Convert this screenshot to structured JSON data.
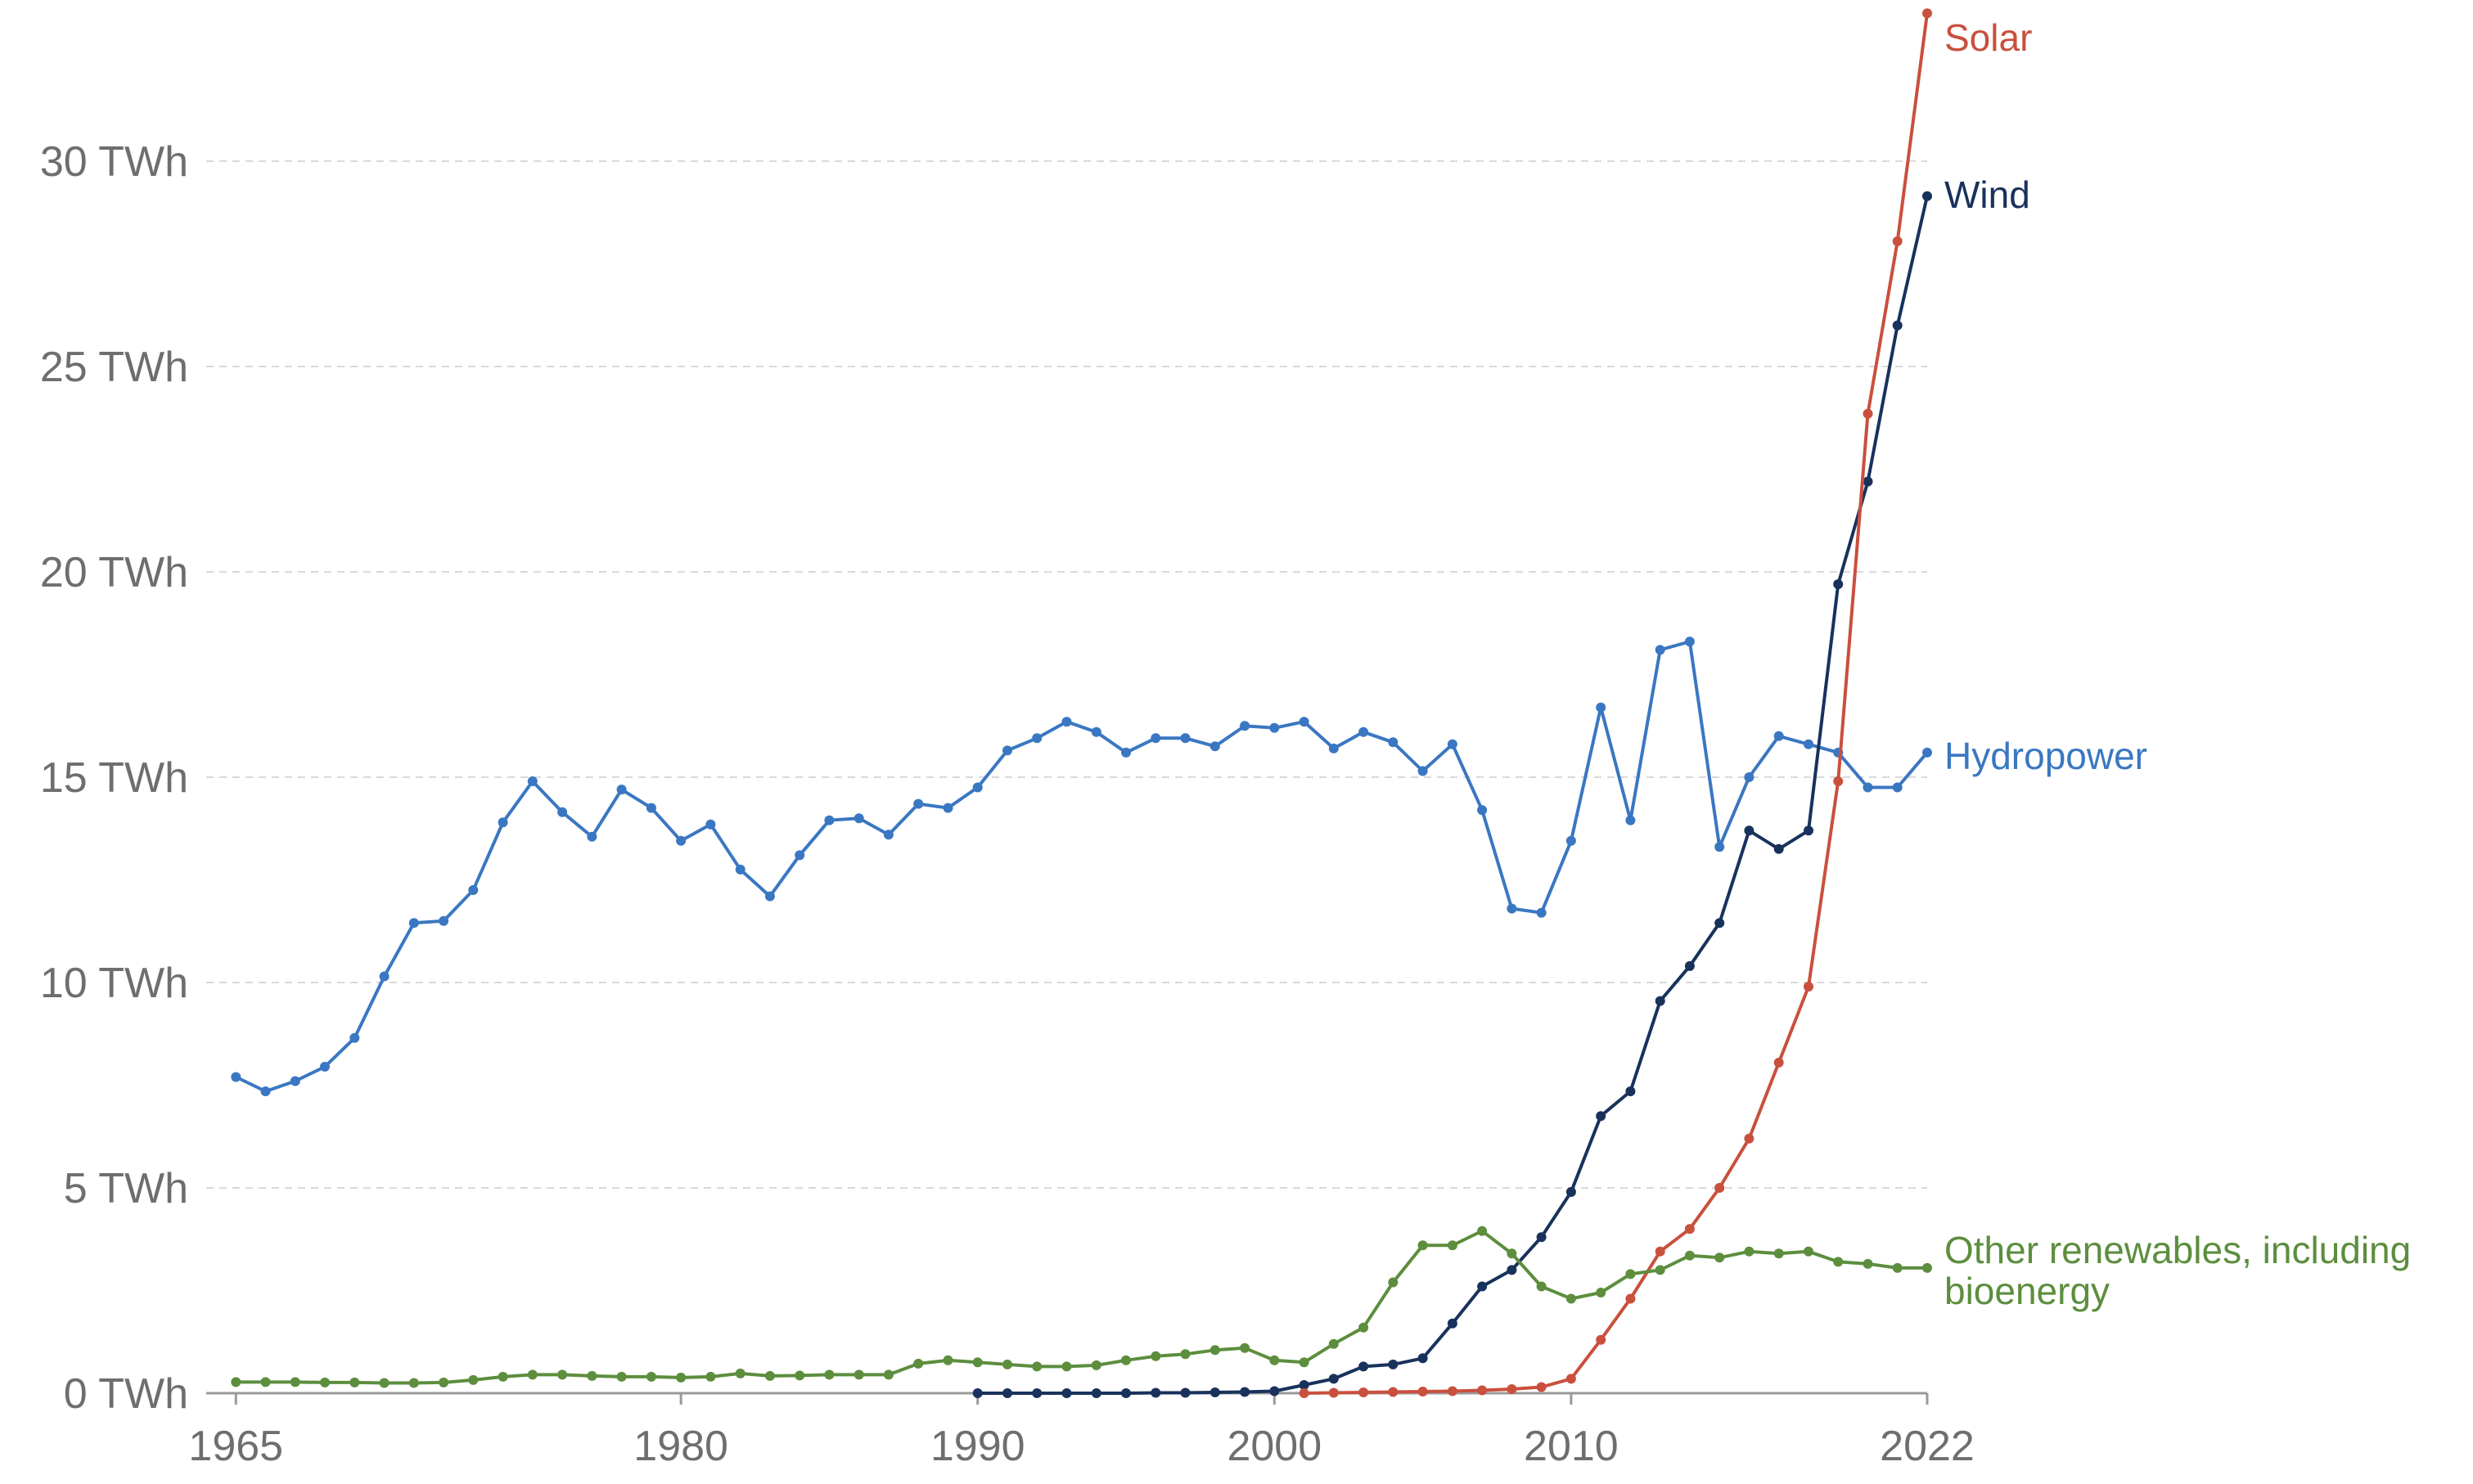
{
  "chart_data": {
    "type": "line",
    "title": "",
    "xlabel": "",
    "ylabel": "",
    "unit": "TWh",
    "xlim": [
      1964,
      2022
    ],
    "ylim": [
      0,
      33.5
    ],
    "grid": true,
    "x_ticks": [
      "1965",
      "1980",
      "1990",
      "2000",
      "2010",
      "2022"
    ],
    "x_tick_values": [
      1965,
      1980,
      1990,
      2000,
      2010,
      2022
    ],
    "y_ticks": [
      "0 TWh",
      "5 TWh",
      "10 TWh",
      "15 TWh",
      "20 TWh",
      "25 TWh",
      "30 TWh"
    ],
    "y_tick_values": [
      0,
      5,
      10,
      15,
      20,
      25,
      30
    ],
    "series": [
      {
        "name": "Hydropower",
        "label_lines": [
          "Hydropower"
        ],
        "color": "#3a77c2",
        "x": [
          1965,
          1966,
          1967,
          1968,
          1969,
          1970,
          1971,
          1972,
          1973,
          1974,
          1975,
          1976,
          1977,
          1978,
          1979,
          1980,
          1981,
          1982,
          1983,
          1984,
          1985,
          1986,
          1987,
          1988,
          1989,
          1990,
          1991,
          1992,
          1993,
          1994,
          1995,
          1996,
          1997,
          1998,
          1999,
          2000,
          2001,
          2002,
          2003,
          2004,
          2005,
          2006,
          2007,
          2008,
          2009,
          2010,
          2011,
          2012,
          2013,
          2014,
          2015,
          2016,
          2017,
          2018,
          2019,
          2020,
          2021,
          2022
        ],
        "values": [
          7.7,
          7.35,
          7.6,
          7.95,
          8.65,
          10.15,
          11.45,
          11.5,
          12.25,
          13.9,
          14.9,
          14.15,
          13.55,
          14.7,
          14.25,
          13.45,
          13.85,
          12.75,
          12.1,
          13.1,
          13.95,
          14.0,
          13.6,
          14.35,
          14.25,
          14.75,
          15.65,
          15.95,
          16.35,
          16.1,
          15.6,
          15.95,
          15.95,
          15.75,
          16.25,
          16.2,
          16.35,
          15.7,
          16.1,
          15.85,
          15.15,
          15.8,
          14.2,
          11.8,
          11.7,
          13.45,
          16.7,
          13.95,
          18.1,
          18.3,
          13.3,
          15.0,
          16.0,
          15.8,
          15.6,
          14.75,
          14.75,
          15.6
        ]
      },
      {
        "name": "Wind",
        "label_lines": [
          "Wind"
        ],
        "color": "#18325c",
        "x": [
          1990,
          1991,
          1992,
          1993,
          1994,
          1995,
          1996,
          1997,
          1998,
          1999,
          2000,
          2001,
          2002,
          2003,
          2004,
          2005,
          2006,
          2007,
          2008,
          2009,
          2010,
          2011,
          2012,
          2013,
          2014,
          2015,
          2016,
          2017,
          2018,
          2019,
          2020,
          2021,
          2022
        ],
        "values": [
          0.0,
          0.0,
          0.0,
          0.0,
          0.0,
          0.0,
          0.01,
          0.01,
          0.02,
          0.03,
          0.05,
          0.2,
          0.35,
          0.65,
          0.7,
          0.85,
          1.7,
          2.6,
          3.0,
          3.8,
          4.9,
          6.75,
          7.35,
          9.55,
          10.4,
          11.45,
          13.7,
          13.25,
          13.7,
          19.7,
          22.2,
          26.0,
          29.15
        ]
      },
      {
        "name": "Solar",
        "label_lines": [
          "Solar"
        ],
        "color": "#c9503d",
        "x": [
          2001,
          2002,
          2003,
          2004,
          2005,
          2006,
          2007,
          2008,
          2009,
          2010,
          2011,
          2012,
          2013,
          2014,
          2015,
          2016,
          2017,
          2018,
          2019,
          2020,
          2021,
          2022
        ],
        "values": [
          0.0,
          0.01,
          0.02,
          0.03,
          0.04,
          0.05,
          0.07,
          0.1,
          0.15,
          0.35,
          1.3,
          2.3,
          3.45,
          4.0,
          5.0,
          6.2,
          8.05,
          9.9,
          14.9,
          23.85,
          28.05,
          33.6
        ]
      },
      {
        "name": "Other renewables, including bioenergy",
        "label_lines": [
          "Other renewables, including",
          "bioenergy"
        ],
        "color": "#5c8e3e",
        "x": [
          1965,
          1966,
          1967,
          1968,
          1969,
          1970,
          1971,
          1972,
          1973,
          1974,
          1975,
          1976,
          1977,
          1978,
          1979,
          1980,
          1981,
          1982,
          1983,
          1984,
          1985,
          1986,
          1987,
          1988,
          1989,
          1990,
          1991,
          1992,
          1993,
          1994,
          1995,
          1996,
          1997,
          1998,
          1999,
          2000,
          2001,
          2002,
          2003,
          2004,
          2005,
          2006,
          2007,
          2008,
          2009,
          2010,
          2011,
          2012,
          2013,
          2014,
          2015,
          2016,
          2017,
          2018,
          2019,
          2020,
          2021,
          2022
        ],
        "values": [
          0.27,
          0.27,
          0.27,
          0.26,
          0.26,
          0.25,
          0.25,
          0.26,
          0.32,
          0.4,
          0.45,
          0.45,
          0.42,
          0.4,
          0.4,
          0.38,
          0.4,
          0.48,
          0.42,
          0.43,
          0.45,
          0.45,
          0.45,
          0.72,
          0.8,
          0.75,
          0.7,
          0.65,
          0.65,
          0.68,
          0.8,
          0.9,
          0.95,
          1.05,
          1.1,
          0.8,
          0.75,
          1.2,
          1.6,
          2.7,
          3.6,
          3.6,
          3.95,
          3.4,
          2.6,
          2.3,
          2.45,
          2.9,
          3.0,
          3.35,
          3.3,
          3.45,
          3.4,
          3.45,
          3.2,
          3.15,
          3.05,
          3.05
        ]
      }
    ]
  }
}
